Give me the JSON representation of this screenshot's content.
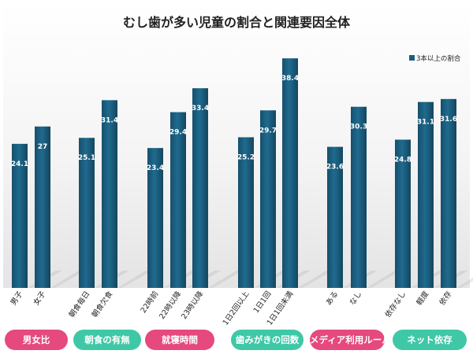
{
  "chart_data": {
    "type": "bar",
    "title": "むし歯が多い児童の割合と関連要因全体",
    "legend": {
      "label": "3本以上の割合",
      "position": "top-right"
    },
    "series": [
      {
        "name": "3本以上の割合",
        "color": "#1d5e80"
      }
    ],
    "ylim": [
      0,
      42
    ],
    "grid": false,
    "groups": [
      {
        "label": "男女比",
        "color": "#e5497e",
        "categories": [
          "男子",
          "女子"
        ],
        "values": [
          24.1,
          27
        ],
        "value_labels": [
          "24.1",
          "27"
        ]
      },
      {
        "label": "朝食の有無",
        "color": "#3fc8a6",
        "categories": [
          "朝食毎日",
          "朝食欠食"
        ],
        "values": [
          25.1,
          31.4
        ],
        "value_labels": [
          "25.1",
          "31.4"
        ]
      },
      {
        "label": "就寝時間",
        "color": "#e5497e",
        "categories": [
          "22時前",
          "22時以降",
          "23時以降"
        ],
        "values": [
          23.4,
          29.4,
          33.4
        ],
        "value_labels": [
          "23.4",
          "29.4",
          "33.4"
        ]
      },
      {
        "label": "歯みがきの回数",
        "color": "#3fc8a6",
        "categories": [
          "1日2回以上",
          "1日1回",
          "1日1回未満"
        ],
        "values": [
          25.2,
          29.7,
          38.4
        ],
        "value_labels": [
          "25.2",
          "29.7",
          "38.4"
        ]
      },
      {
        "label": "メディア利用ルール",
        "color": "#e5497e",
        "categories": [
          "ある",
          "なし"
        ],
        "values": [
          23.6,
          30.3
        ],
        "value_labels": [
          "23.6",
          "30.3"
        ]
      },
      {
        "label": "ネット依存",
        "color": "#3fc8a6",
        "categories": [
          "依存なし",
          "軽度",
          "依存"
        ],
        "values": [
          24.8,
          31.1,
          31.6
        ],
        "value_labels": [
          "24.8",
          "31.1",
          "31.6"
        ]
      }
    ]
  }
}
